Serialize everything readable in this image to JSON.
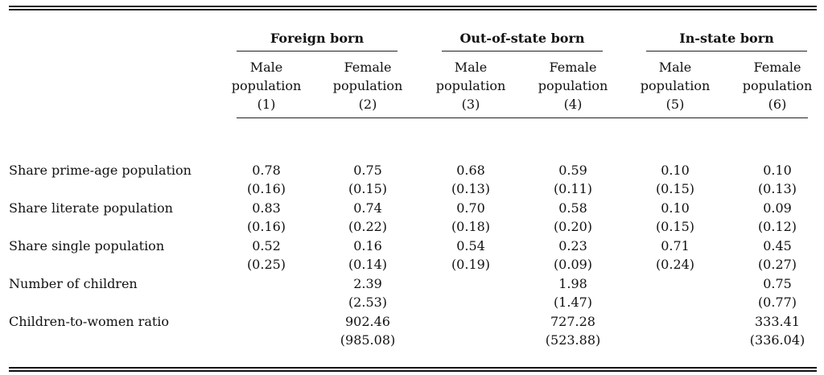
{
  "groups": [
    {
      "label": "Foreign born"
    },
    {
      "label": "Out-of-state born"
    },
    {
      "label": "In-state born"
    }
  ],
  "columns": [
    {
      "line1": "Male",
      "line2": "population",
      "num": "(1)"
    },
    {
      "line1": "Female",
      "line2": "population",
      "num": "(2)"
    },
    {
      "line1": "Male",
      "line2": "population",
      "num": "(3)"
    },
    {
      "line1": "Female",
      "line2": "population",
      "num": "(4)"
    },
    {
      "line1": "Male",
      "line2": "population",
      "num": "(5)"
    },
    {
      "line1": "Female",
      "line2": "population",
      "num": "(6)"
    }
  ],
  "rows": [
    {
      "label": "Share prime-age population",
      "values": [
        [
          "0.78",
          "(0.16)"
        ],
        [
          "0.75",
          "(0.15)"
        ],
        [
          "0.68",
          "(0.13)"
        ],
        [
          "0.59",
          "(0.11)"
        ],
        [
          "0.10",
          "(0.15)"
        ],
        [
          "0.10",
          "(0.13)"
        ]
      ]
    },
    {
      "label": "Share literate population",
      "values": [
        [
          "0.83",
          "(0.16)"
        ],
        [
          "0.74",
          "(0.22)"
        ],
        [
          "0.70",
          "(0.18)"
        ],
        [
          "0.58",
          "(0.20)"
        ],
        [
          "0.10",
          "(0.15)"
        ],
        [
          "0.09",
          "(0.12)"
        ]
      ]
    },
    {
      "label": "Share single population",
      "values": [
        [
          "0.52",
          "(0.25)"
        ],
        [
          "0.16",
          "(0.14)"
        ],
        [
          "0.54",
          "(0.19)"
        ],
        [
          "0.23",
          "(0.09)"
        ],
        [
          "0.71",
          "(0.24)"
        ],
        [
          "0.45",
          "(0.27)"
        ]
      ]
    },
    {
      "label": "Number of children",
      "values": [
        [
          "",
          ""
        ],
        [
          "2.39",
          "(2.53)"
        ],
        [
          "",
          ""
        ],
        [
          "1.98",
          "(1.47)"
        ],
        [
          "",
          ""
        ],
        [
          "0.75",
          "(0.77)"
        ]
      ]
    },
    {
      "label": "Children-to-women ratio",
      "values": [
        [
          "",
          ""
        ],
        [
          "902.46",
          "(985.08)"
        ],
        [
          "",
          ""
        ],
        [
          "727.28",
          "(523.88)"
        ],
        [
          "",
          ""
        ],
        [
          "333.41",
          "(336.04)"
        ]
      ]
    }
  ]
}
